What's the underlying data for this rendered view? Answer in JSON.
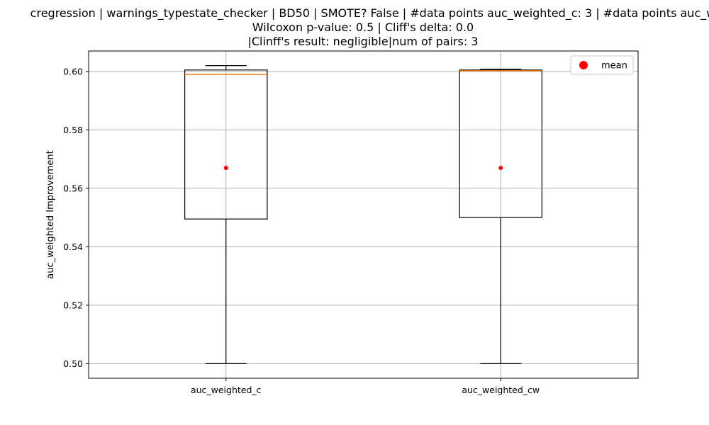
{
  "chart_data": {
    "type": "boxplot",
    "title_lines": [
      "cregression | warnings_typestate_checker | BD50 | SMOTE? False | #data points auc_weighted_c: 3 | #data points auc_w",
      "Wilcoxon p-value: 0.5 | Cliff's delta: 0.0",
      "|Clinff's result: negligible|num of pairs: 3"
    ],
    "xlabel": "",
    "ylabel": "auc_weighted Improvement",
    "ylim": [
      0.495,
      0.607
    ],
    "yticks": [
      0.5,
      0.52,
      0.54,
      0.56,
      0.58,
      0.6
    ],
    "ytick_labels": [
      "0.50",
      "0.52",
      "0.54",
      "0.56",
      "0.58",
      "0.60"
    ],
    "grid": true,
    "legend": {
      "placement": "top-right",
      "entries": [
        {
          "label": "mean",
          "color": "#ff0000",
          "marker": "circle"
        }
      ]
    },
    "categories": [
      "auc_weighted_c",
      "auc_weighted_cw"
    ],
    "boxes": [
      {
        "category": "auc_weighted_c",
        "whisker_low": 0.5,
        "q1": 0.5495,
        "median": 0.599,
        "q3": 0.6005,
        "whisker_high": 0.602,
        "mean": 0.567
      },
      {
        "category": "auc_weighted_cw",
        "whisker_low": 0.5,
        "q1": 0.55,
        "median": 0.6002,
        "q3": 0.6005,
        "whisker_high": 0.6008,
        "mean": 0.567
      }
    ],
    "colors": {
      "box": "#000000",
      "median": "#ff7f0e",
      "mean": "#ff0000",
      "grid": "#b0b0b0"
    }
  }
}
